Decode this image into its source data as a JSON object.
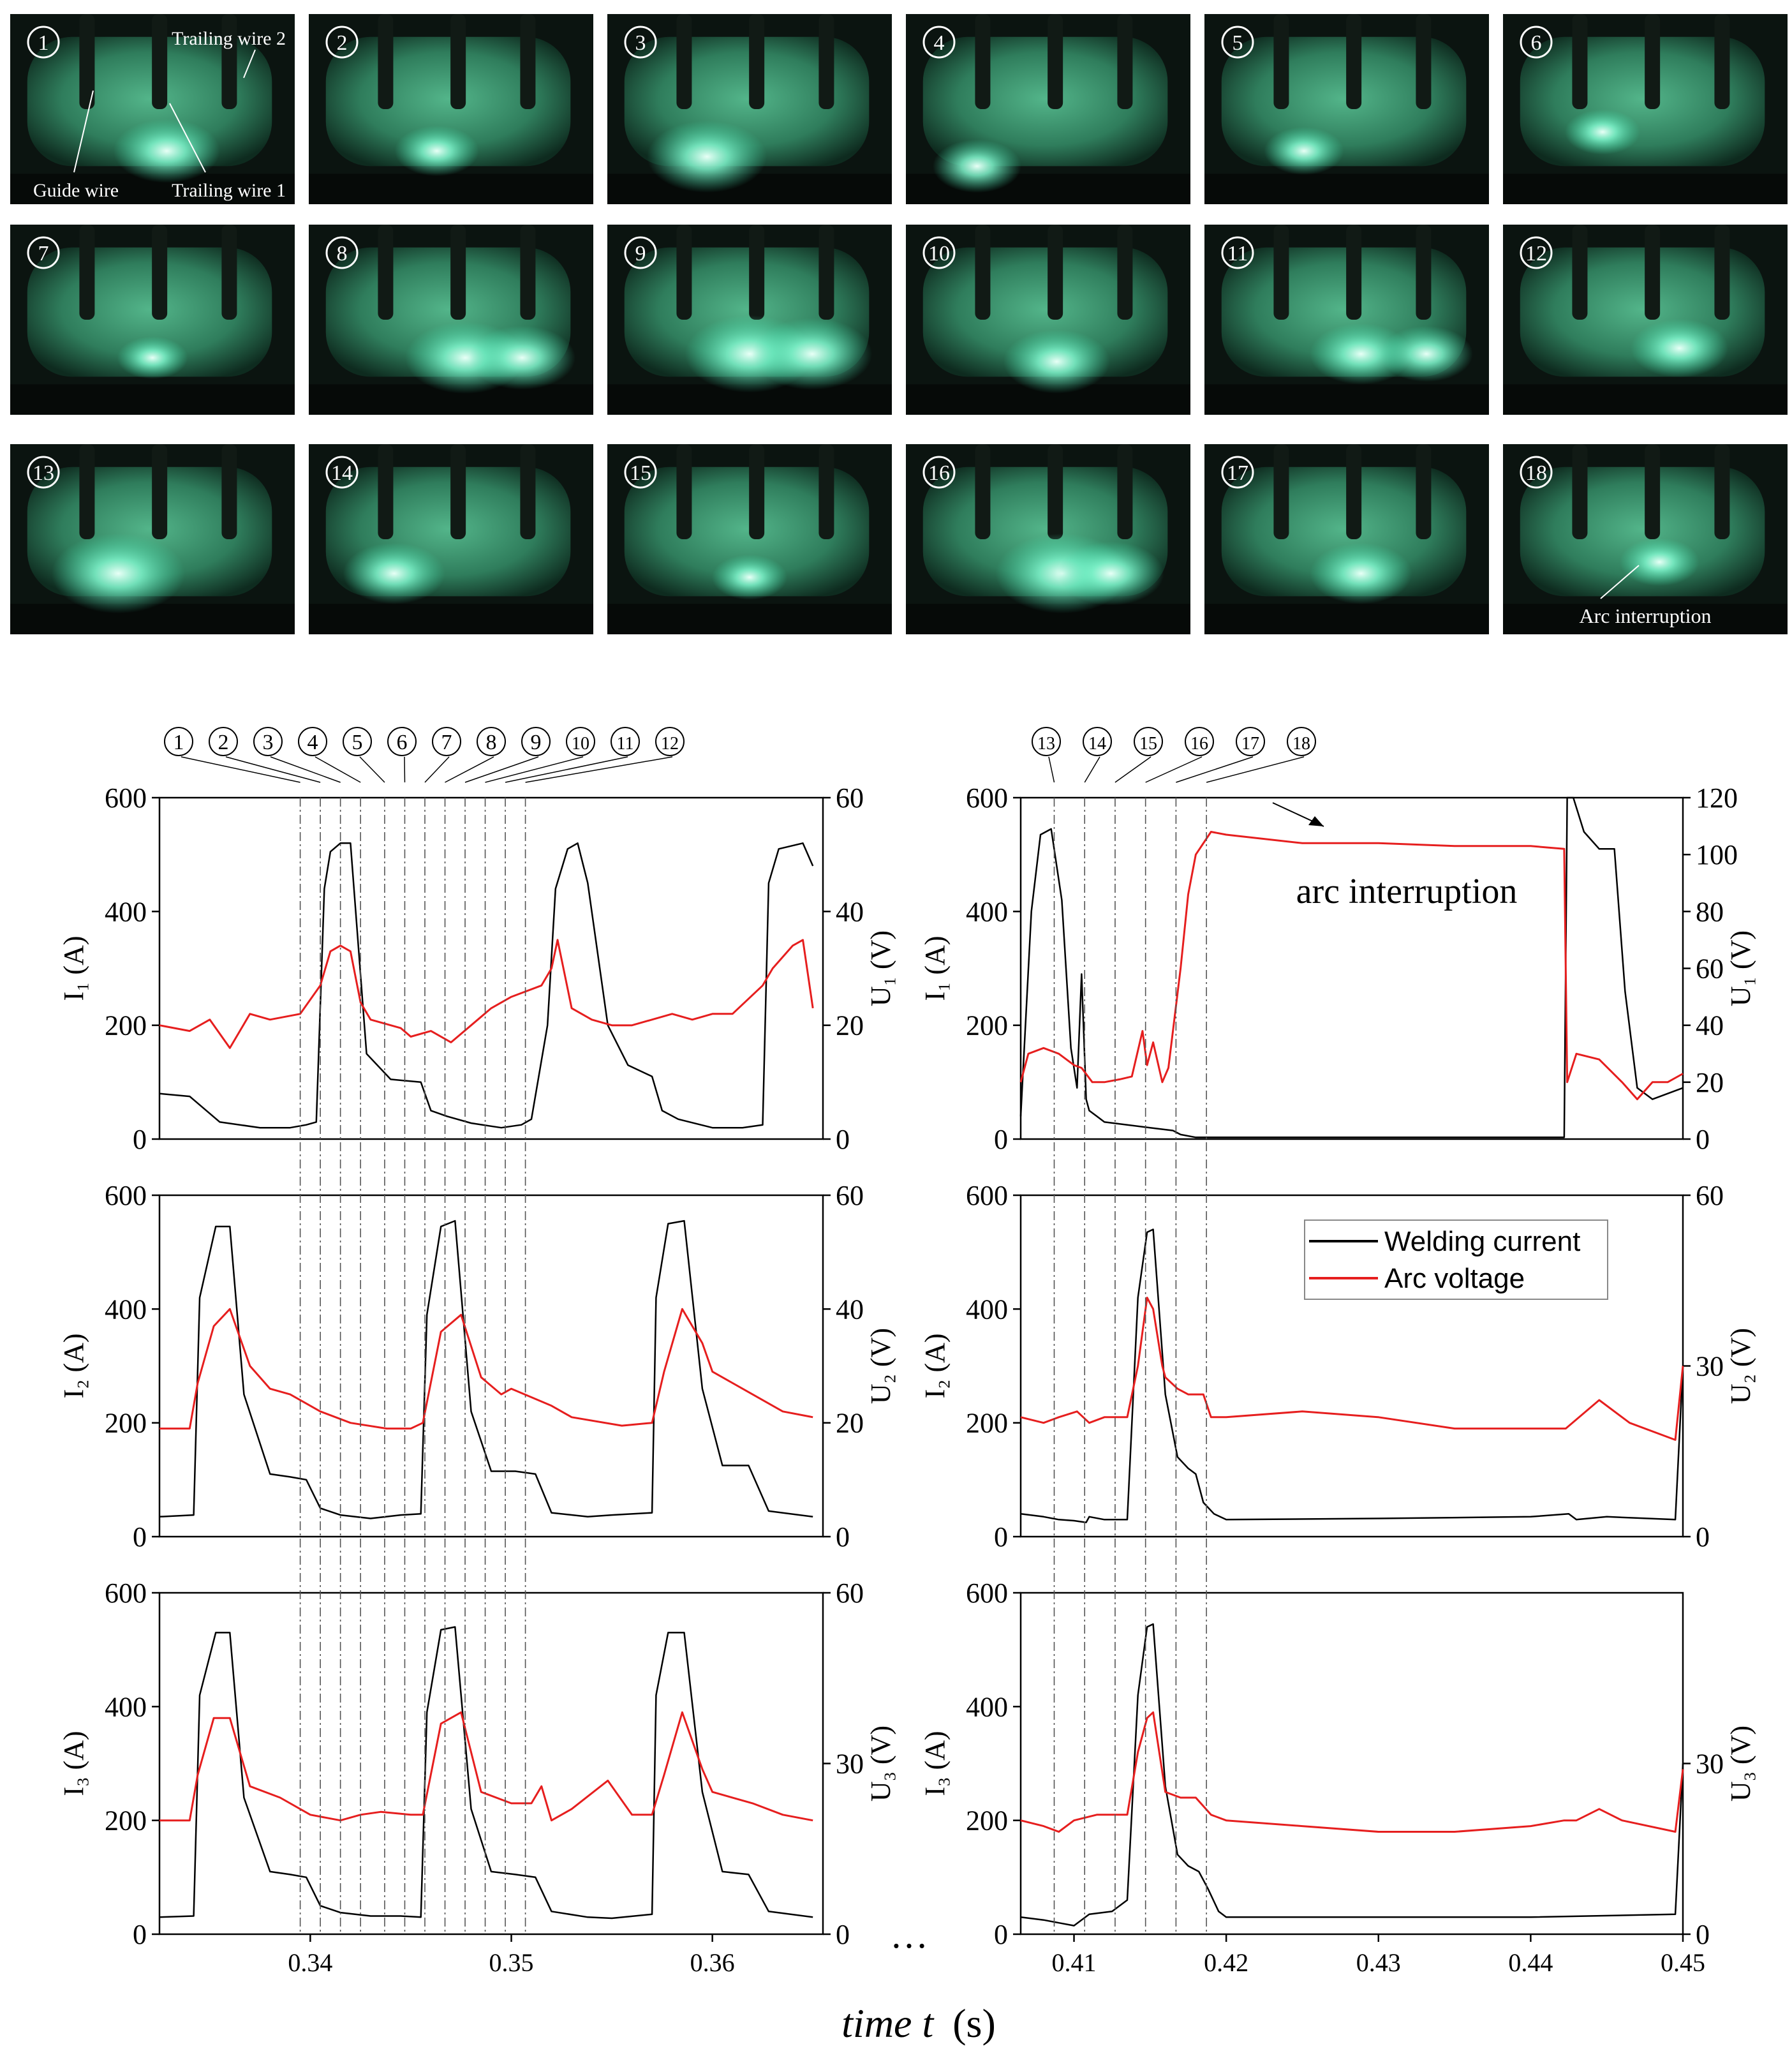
{
  "figure": {
    "xlabel_italic": "time t",
    "xlabel_unit": "(s)",
    "ellipsis": "…",
    "colors": {
      "current": "#000000",
      "voltage": "#e61e1e"
    }
  },
  "photos": [
    {
      "n": "1",
      "annotations": [
        "Trailing wire 2",
        "Guide wire",
        "Trailing wire 1"
      ]
    },
    {
      "n": "2"
    },
    {
      "n": "3"
    },
    {
      "n": "4"
    },
    {
      "n": "5"
    },
    {
      "n": "6"
    },
    {
      "n": "7"
    },
    {
      "n": "8"
    },
    {
      "n": "9"
    },
    {
      "n": "10"
    },
    {
      "n": "11"
    },
    {
      "n": "12"
    },
    {
      "n": "13"
    },
    {
      "n": "14"
    },
    {
      "n": "15"
    },
    {
      "n": "16"
    },
    {
      "n": "17"
    },
    {
      "n": "18",
      "annotations": [
        "Arc interruption"
      ]
    }
  ],
  "markers_left": [
    {
      "label": "1",
      "t": 0.3395
    },
    {
      "label": "2",
      "t": 0.3405
    },
    {
      "label": "3",
      "t": 0.3415
    },
    {
      "label": "4",
      "t": 0.3425
    },
    {
      "label": "5",
      "t": 0.3437
    },
    {
      "label": "6",
      "t": 0.3447
    },
    {
      "label": "7",
      "t": 0.3457
    },
    {
      "label": "8",
      "t": 0.3467
    },
    {
      "label": "9",
      "t": 0.3477
    },
    {
      "label": "10",
      "t": 0.3487
    },
    {
      "label": "11",
      "t": 0.3497
    },
    {
      "label": "12",
      "t": 0.3507
    }
  ],
  "markers_right": [
    {
      "label": "13",
      "t": 0.4087
    },
    {
      "label": "14",
      "t": 0.4107
    },
    {
      "label": "15",
      "t": 0.4127
    },
    {
      "label": "16",
      "t": 0.4147
    },
    {
      "label": "17",
      "t": 0.4167
    },
    {
      "label": "18",
      "t": 0.4187
    }
  ],
  "legend": {
    "current": "Welding current",
    "voltage": "Arc voltage"
  },
  "annotation": "arc interruption",
  "chart_data": [
    {
      "type": "line",
      "id": "left-1",
      "ylabel": "I₁ (A)",
      "y2label": "U₁ (V)",
      "xlim": [
        0.3325,
        0.3655
      ],
      "ylim": [
        0,
        600
      ],
      "y2lim": [
        0,
        60
      ],
      "yticks": [
        0,
        200,
        400,
        600
      ],
      "y2ticks": [
        0,
        20,
        40,
        60
      ],
      "xticks": [],
      "series": [
        {
          "kind": "current",
          "x": [
            0.3325,
            0.334,
            0.3355,
            0.3375,
            0.339,
            0.3398,
            0.3403,
            0.3407,
            0.341,
            0.3415,
            0.342,
            0.3428,
            0.344,
            0.3455,
            0.346,
            0.3468,
            0.348,
            0.3495,
            0.3505,
            0.351,
            0.3518,
            0.3522,
            0.3528,
            0.3533,
            0.3538,
            0.3548,
            0.3558,
            0.357,
            0.3575,
            0.3583,
            0.36,
            0.3615,
            0.3625,
            0.3628,
            0.3633,
            0.3645,
            0.365
          ],
          "y": [
            80,
            75,
            30,
            20,
            20,
            25,
            30,
            440,
            505,
            520,
            520,
            150,
            105,
            100,
            50,
            40,
            28,
            20,
            25,
            35,
            200,
            440,
            510,
            520,
            450,
            200,
            130,
            110,
            50,
            35,
            20,
            20,
            25,
            450,
            510,
            520,
            480
          ]
        },
        {
          "kind": "voltage",
          "x": [
            0.3325,
            0.334,
            0.335,
            0.336,
            0.337,
            0.338,
            0.3395,
            0.3405,
            0.341,
            0.3415,
            0.342,
            0.3425,
            0.343,
            0.3445,
            0.345,
            0.346,
            0.347,
            0.348,
            0.349,
            0.35,
            0.3515,
            0.352,
            0.3523,
            0.353,
            0.354,
            0.355,
            0.356,
            0.357,
            0.358,
            0.359,
            0.36,
            0.361,
            0.3625,
            0.363,
            0.364,
            0.3645,
            0.365
          ],
          "y": [
            20,
            19,
            21,
            16,
            22,
            21,
            22,
            27,
            33,
            34,
            33,
            24,
            21,
            19.5,
            18,
            19,
            17,
            20,
            23,
            25,
            27,
            30,
            35,
            23,
            21,
            20,
            20,
            21,
            22,
            21,
            22,
            22,
            27,
            30,
            34,
            35,
            23
          ]
        }
      ]
    },
    {
      "type": "line",
      "id": "left-2",
      "ylabel": "I₂ (A)",
      "y2label": "U₂ (V)",
      "xlim": [
        0.3325,
        0.3655
      ],
      "ylim": [
        0,
        600
      ],
      "y2lim": [
        0,
        60
      ],
      "yticks": [
        0,
        200,
        400,
        600
      ],
      "y2ticks": [
        0,
        20,
        40,
        60
      ],
      "xticks": [],
      "series": [
        {
          "kind": "current",
          "x": [
            0.3325,
            0.3342,
            0.3345,
            0.3353,
            0.336,
            0.3367,
            0.338,
            0.339,
            0.3398,
            0.3405,
            0.3415,
            0.343,
            0.3445,
            0.3455,
            0.3458,
            0.3465,
            0.3472,
            0.348,
            0.349,
            0.3502,
            0.3512,
            0.352,
            0.3538,
            0.355,
            0.357,
            0.3572,
            0.3578,
            0.3586,
            0.3595,
            0.3605,
            0.3618,
            0.3628,
            0.365
          ],
          "y": [
            35,
            38,
            420,
            545,
            545,
            250,
            110,
            105,
            100,
            50,
            38,
            32,
            38,
            40,
            390,
            545,
            555,
            220,
            115,
            115,
            110,
            42,
            35,
            38,
            42,
            420,
            550,
            555,
            260,
            125,
            125,
            45,
            35
          ]
        },
        {
          "kind": "voltage",
          "x": [
            0.3325,
            0.334,
            0.3344,
            0.3352,
            0.336,
            0.337,
            0.338,
            0.339,
            0.3405,
            0.342,
            0.3438,
            0.345,
            0.3456,
            0.3465,
            0.3475,
            0.3485,
            0.3495,
            0.35,
            0.352,
            0.353,
            0.3555,
            0.357,
            0.3576,
            0.3585,
            0.3595,
            0.36,
            0.362,
            0.3635,
            0.365
          ],
          "y": [
            19,
            19,
            27,
            37,
            40,
            30,
            26,
            25,
            22,
            20,
            19,
            19,
            20,
            36,
            39,
            28,
            25,
            26,
            23,
            21,
            19.5,
            20,
            29,
            40,
            34,
            29,
            25,
            22,
            21
          ]
        }
      ]
    },
    {
      "type": "line",
      "id": "left-3",
      "ylabel": "I₃ (A)",
      "y2label": "U₃ (V)",
      "xlim": [
        0.3325,
        0.3655
      ],
      "ylim": [
        0,
        600
      ],
      "y2lim": [
        0,
        60
      ],
      "yticks": [
        0,
        200,
        400,
        600
      ],
      "y2ticks": [
        30,
        60,
        0
      ],
      "xticks": [
        0.34,
        0.35,
        0.36
      ],
      "xticklabels": [
        "0.34",
        "0.35",
        "0.36"
      ],
      "series": [
        {
          "kind": "current",
          "x": [
            0.3325,
            0.3342,
            0.3345,
            0.3353,
            0.336,
            0.3367,
            0.338,
            0.339,
            0.3398,
            0.3405,
            0.3415,
            0.343,
            0.3445,
            0.3455,
            0.3458,
            0.3465,
            0.3472,
            0.348,
            0.349,
            0.3502,
            0.3512,
            0.352,
            0.3538,
            0.355,
            0.357,
            0.3572,
            0.3578,
            0.3586,
            0.3595,
            0.3605,
            0.3618,
            0.3628,
            0.365
          ],
          "y": [
            30,
            32,
            420,
            530,
            530,
            240,
            110,
            105,
            100,
            50,
            38,
            32,
            32,
            30,
            390,
            535,
            540,
            220,
            110,
            105,
            100,
            40,
            30,
            28,
            35,
            420,
            530,
            530,
            250,
            110,
            105,
            40,
            30
          ]
        },
        {
          "kind": "voltage",
          "x": [
            0.3325,
            0.334,
            0.3344,
            0.3352,
            0.336,
            0.337,
            0.3385,
            0.34,
            0.3415,
            0.3425,
            0.3435,
            0.345,
            0.3456,
            0.3465,
            0.3475,
            0.3485,
            0.35,
            0.351,
            0.3515,
            0.352,
            0.353,
            0.3548,
            0.356,
            0.357,
            0.3576,
            0.3585,
            0.3595,
            0.36,
            0.362,
            0.3635,
            0.365
          ],
          "y": [
            20,
            20,
            28,
            38,
            38,
            26,
            24,
            21,
            20,
            21,
            21.5,
            21,
            21,
            37,
            39,
            25,
            23,
            23,
            26,
            20,
            22,
            27,
            21,
            21,
            28,
            39,
            29,
            25,
            23,
            21,
            20
          ]
        }
      ]
    },
    {
      "type": "line",
      "id": "right-1",
      "ylabel": "I₁ (A)",
      "y2label": "U₁ (V)",
      "xlim": [
        0.4065,
        0.45
      ],
      "ylim": [
        0,
        600
      ],
      "y2lim": [
        0,
        120
      ],
      "yticks": [
        0,
        200,
        400,
        600
      ],
      "y2ticks": [
        0,
        20,
        40,
        60,
        80,
        100,
        120
      ],
      "xticks": [],
      "series": [
        {
          "kind": "current",
          "x": [
            0.4065,
            0.4072,
            0.4078,
            0.4085,
            0.4092,
            0.4098,
            0.4102,
            0.4105,
            0.4108,
            0.411,
            0.4115,
            0.412,
            0.4135,
            0.415,
            0.4165,
            0.417,
            0.418,
            0.42,
            0.43,
            0.44,
            0.4422,
            0.4424,
            0.4428,
            0.4435,
            0.4445,
            0.4455,
            0.4462,
            0.447,
            0.448,
            0.449,
            0.45
          ],
          "y": [
            40,
            400,
            535,
            545,
            420,
            160,
            90,
            290,
            70,
            50,
            40,
            30,
            25,
            20,
            15,
            8,
            3,
            3,
            3,
            3,
            3,
            600,
            600,
            540,
            510,
            510,
            260,
            90,
            70,
            80,
            90
          ]
        },
        {
          "kind": "voltage",
          "x": [
            0.4065,
            0.407,
            0.408,
            0.409,
            0.41,
            0.4105,
            0.4112,
            0.412,
            0.413,
            0.4138,
            0.4145,
            0.4148,
            0.4152,
            0.4158,
            0.4162,
            0.417,
            0.4175,
            0.418,
            0.419,
            0.42,
            0.425,
            0.43,
            0.435,
            0.44,
            0.4422,
            0.4424,
            0.443,
            0.4445,
            0.446,
            0.447,
            0.448,
            0.449,
            0.45
          ],
          "y": [
            20,
            30,
            32,
            30,
            26,
            25,
            20,
            20,
            21,
            22,
            38,
            26,
            34,
            20,
            25,
            60,
            86,
            100,
            108,
            107,
            104,
            104,
            103,
            103,
            102,
            20,
            30,
            28,
            20,
            14,
            20,
            20,
            23
          ]
        }
      ]
    },
    {
      "type": "line",
      "id": "right-2",
      "ylabel": "I₂ (A)",
      "y2label": "U₂ (V)",
      "xlim": [
        0.4065,
        0.45
      ],
      "ylim": [
        0,
        600
      ],
      "y2lim": [
        0,
        60
      ],
      "yticks": [
        0,
        200,
        400,
        600
      ],
      "y2ticks": [
        0,
        30,
        60
      ],
      "xticks": [],
      "series": [
        {
          "kind": "current",
          "x": [
            0.4065,
            0.408,
            0.409,
            0.41,
            0.4108,
            0.411,
            0.412,
            0.4135,
            0.4142,
            0.4148,
            0.4152,
            0.416,
            0.4168,
            0.4175,
            0.418,
            0.4185,
            0.4192,
            0.42,
            0.43,
            0.44,
            0.4425,
            0.443,
            0.445,
            0.4495,
            0.45
          ],
          "y": [
            40,
            35,
            30,
            28,
            25,
            35,
            30,
            30,
            420,
            535,
            540,
            250,
            140,
            120,
            110,
            60,
            40,
            30,
            32,
            35,
            40,
            30,
            35,
            30,
            300
          ]
        },
        {
          "kind": "voltage",
          "x": [
            0.4065,
            0.408,
            0.409,
            0.4102,
            0.411,
            0.412,
            0.4135,
            0.4142,
            0.4148,
            0.4152,
            0.4158,
            0.416,
            0.4168,
            0.4175,
            0.4185,
            0.419,
            0.42,
            0.425,
            0.43,
            0.435,
            0.44,
            0.4423,
            0.4445,
            0.4465,
            0.4495,
            0.45
          ],
          "y": [
            21,
            20,
            21,
            22,
            20,
            21,
            21,
            30,
            42,
            40,
            30,
            28,
            26,
            25,
            25,
            21,
            21,
            22,
            21,
            19,
            19,
            19,
            24,
            20,
            17,
            30
          ]
        }
      ]
    },
    {
      "type": "line",
      "id": "right-3",
      "ylabel": "I₃ (A)",
      "y2label": "U₃ (V)",
      "xlim": [
        0.4065,
        0.45
      ],
      "ylim": [
        0,
        600
      ],
      "y2lim": [
        0,
        60
      ],
      "yticks": [
        0,
        200,
        400,
        600
      ],
      "y2ticks": [
        0,
        30
      ],
      "xticks": [
        0.41,
        0.42,
        0.43,
        0.44,
        0.45
      ],
      "xticklabels": [
        "0.41",
        "0.42",
        "0.43",
        "0.44",
        "0.45"
      ],
      "series": [
        {
          "kind": "current",
          "x": [
            0.4065,
            0.408,
            0.409,
            0.41,
            0.411,
            0.4125,
            0.4135,
            0.4142,
            0.4148,
            0.4152,
            0.416,
            0.4168,
            0.4175,
            0.4182,
            0.4188,
            0.4195,
            0.42,
            0.43,
            0.44,
            0.4495,
            0.45
          ],
          "y": [
            30,
            25,
            20,
            15,
            35,
            40,
            60,
            420,
            540,
            545,
            260,
            140,
            120,
            110,
            80,
            40,
            30,
            30,
            30,
            35,
            300
          ]
        },
        {
          "kind": "voltage",
          "x": [
            0.4065,
            0.408,
            0.409,
            0.41,
            0.4115,
            0.4135,
            0.4142,
            0.4148,
            0.4152,
            0.416,
            0.417,
            0.418,
            0.419,
            0.42,
            0.425,
            0.43,
            0.435,
            0.44,
            0.4422,
            0.443,
            0.4445,
            0.446,
            0.4495,
            0.45
          ],
          "y": [
            20,
            19,
            18,
            20,
            21,
            21,
            32,
            38,
            39,
            25,
            24,
            24,
            21,
            20,
            19,
            18,
            18,
            19,
            20,
            20,
            22,
            20,
            18,
            29
          ]
        }
      ]
    }
  ]
}
